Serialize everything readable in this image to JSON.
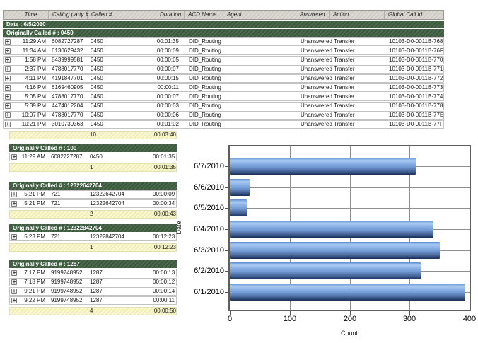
{
  "report": {
    "columns": [
      "Time",
      "Calling party #",
      "Called #",
      "Duration",
      "ACD Name",
      "Agent",
      "Answered",
      "Action",
      "Global Call Id"
    ],
    "date_band": "Date : 6/5/2010",
    "main_group": {
      "label": "Originally Called # : 0450",
      "rows": [
        {
          "time": "11:29 AM",
          "calling": "6082727287",
          "called": "0450",
          "duration": "00:01:35",
          "acd": "DID_Routing",
          "agent": "",
          "answered": "Unanswered",
          "action": "Transfer",
          "global_id": "10103-D0-0011B-768"
        },
        {
          "time": "11:34 AM",
          "calling": "6130629432",
          "called": "0450",
          "duration": "00:00:09",
          "acd": "DID_Routing",
          "agent": "",
          "answered": "Unanswered",
          "action": "Transfer",
          "global_id": "10103-D0-0011B-76F"
        },
        {
          "time": "1:58 PM",
          "calling": "8439999581",
          "called": "0450",
          "duration": "00:00:05",
          "acd": "DID_Routing",
          "agent": "",
          "answered": "Unanswered",
          "action": "Transfer",
          "global_id": "10103-D0-0011B-770"
        },
        {
          "time": "2:37 PM",
          "calling": "4788017770",
          "called": "0450",
          "duration": "00:00:07",
          "acd": "DID_Routing",
          "agent": "",
          "answered": "Unanswered",
          "action": "Transfer",
          "global_id": "10103-D0-0011B-771"
        },
        {
          "time": "4:11 PM",
          "calling": "4191847701",
          "called": "0450",
          "duration": "00:00:15",
          "acd": "DID_Routing",
          "agent": "",
          "answered": "Unanswered",
          "action": "Transfer",
          "global_id": "10103-D0-0011B-772"
        },
        {
          "time": "4:16 PM",
          "calling": "6169460905",
          "called": "0450",
          "duration": "00:00:11",
          "acd": "DID_Routing",
          "agent": "",
          "answered": "Unanswered",
          "action": "Transfer",
          "global_id": "10103-D0-0011B-773"
        },
        {
          "time": "5:05 PM",
          "calling": "4788017770",
          "called": "0450",
          "duration": "00:00:07",
          "acd": "DID_Routing",
          "agent": "",
          "answered": "Unanswered",
          "action": "Transfer",
          "global_id": "10103-D0-0011B-774"
        },
        {
          "time": "5:39 PM",
          "calling": "4474012204",
          "called": "0450",
          "duration": "00:00:03",
          "acd": "DID_Routing",
          "agent": "",
          "answered": "Unanswered",
          "action": "Transfer",
          "global_id": "10103-D0-0011B-778"
        },
        {
          "time": "10:07 PM",
          "calling": "4788017770",
          "called": "0450",
          "duration": "00:00:06",
          "acd": "DID_Routing",
          "agent": "",
          "answered": "Unanswered",
          "action": "Transfer",
          "global_id": "10103-D0-0011B-77E"
        },
        {
          "time": "10:21 PM",
          "calling": "3010739363",
          "called": "0450",
          "duration": "00:01:02",
          "acd": "DID_Routing",
          "agent": "",
          "answered": "Unanswered",
          "action": "Transfer",
          "global_id": "10103-D0-0011B-77F"
        }
      ],
      "summary_count": "10",
      "summary_duration": "00:03:40"
    },
    "groups": [
      {
        "label": "Originally Called # : 100",
        "rows": [
          {
            "time": "11:29 AM",
            "calling": "6082727287",
            "called": "0450",
            "duration": "00:01:35"
          }
        ],
        "summary_count": "1",
        "summary_duration": "00:01:35"
      },
      {
        "label": "Originally Called # : 12322642704",
        "rows": [
          {
            "time": "5:21 PM",
            "calling": "721",
            "called": "12322642704",
            "duration": "00:00:09"
          },
          {
            "time": "5:21 PM",
            "calling": "721",
            "called": "12322642704",
            "duration": "00:00:34"
          }
        ],
        "summary_count": "2",
        "summary_duration": "00:00:43"
      },
      {
        "label": "Originally Called # : 12322842704",
        "rows": [
          {
            "time": "5:23 PM",
            "calling": "721",
            "called": "12322842704",
            "duration": "00:12:23"
          }
        ],
        "summary_count": "1",
        "summary_duration": "00:12:23"
      },
      {
        "label": "Originally Called # : 1287",
        "rows": [
          {
            "time": "7:17 PM",
            "calling": "9199748952",
            "called": "1287",
            "duration": "00:00:13"
          },
          {
            "time": "7:18 PM",
            "calling": "9199748952",
            "called": "1287",
            "duration": "00:00:12"
          },
          {
            "time": "9:21 PM",
            "calling": "9199748952",
            "called": "1287",
            "duration": "00:00:14"
          },
          {
            "time": "9:22 PM",
            "calling": "9199748952",
            "called": "1287",
            "duration": "00:00:11"
          }
        ],
        "summary_count": "4",
        "summary_duration": "00:00:50"
      }
    ]
  },
  "chart_data": {
    "type": "bar",
    "orientation": "horizontal",
    "categories": [
      "6/7/2010",
      "6/6/2010",
      "6/5/2010",
      "6/4/2010",
      "6/3/2010",
      "6/2/2010",
      "6/1/2010"
    ],
    "values": [
      310,
      33,
      28,
      340,
      350,
      318,
      393
    ],
    "title": "",
    "xlabel": "Count",
    "ylabel": "Date",
    "xlim": [
      0,
      400
    ],
    "xticks": [
      0,
      100,
      200,
      300,
      400
    ],
    "grid": true,
    "legend": false
  },
  "icons": {
    "expand": "+"
  },
  "colors": {
    "group_band_green": "#41603f",
    "band_text": "#ffffff",
    "summary_yellow": "#f8f5c9",
    "header_gray": "#d6d3cd",
    "bar_blue_light": "#a9cbf2",
    "bar_blue_dark": "#1e3862",
    "grid_gray": "#8f8f8f"
  }
}
